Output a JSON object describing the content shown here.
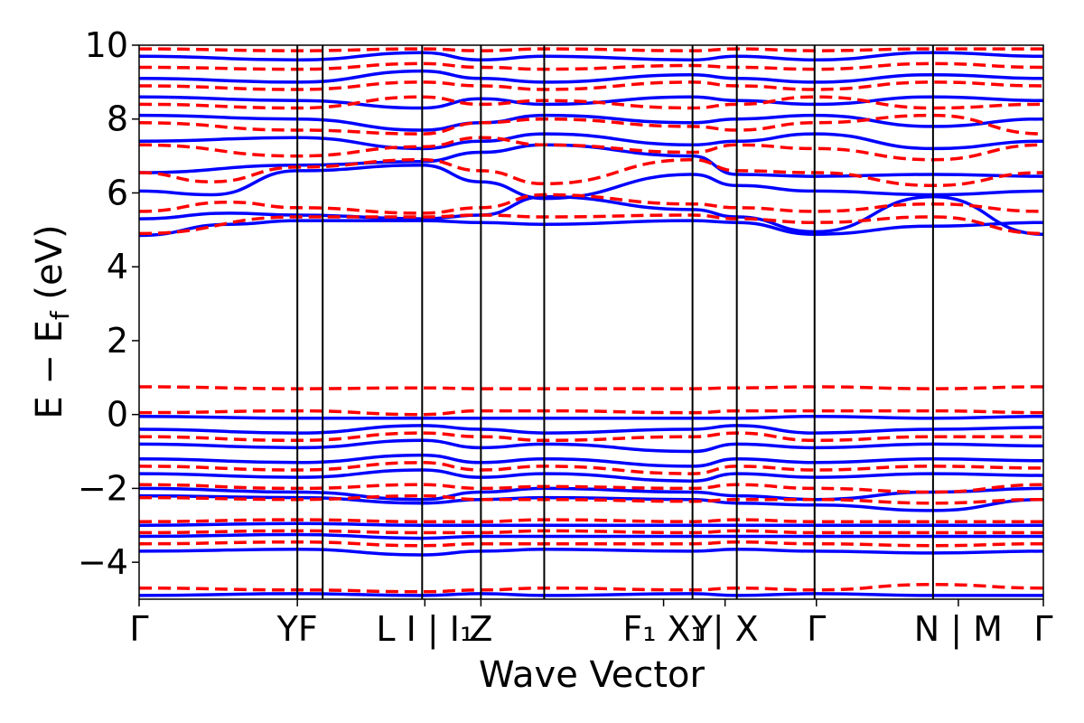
{
  "chart_data": {
    "type": "line",
    "title": "",
    "xlabel": "Wave Vector",
    "ylabel": "E − E",
    "ylabel_sub": "f",
    "ylabel_unit": " (eV)",
    "ylim": [
      -5,
      10
    ],
    "yticks": [
      -4,
      -2,
      0,
      2,
      4,
      6,
      8,
      10
    ],
    "ytick_labels": [
      "−4",
      "−2",
      "0",
      "2",
      "4",
      "6",
      "8",
      "10"
    ],
    "xlim": [
      0,
      1
    ],
    "kpoints": [
      {
        "x": 0.0,
        "label": "Γ"
      },
      {
        "x": 0.175,
        "label": "YF"
      },
      {
        "x": 0.316,
        "label": "L I | I₁"
      },
      {
        "x": 0.378,
        "label": "Z"
      },
      {
        "x": 0.58,
        "label": "F₁ X₁"
      },
      {
        "x": 0.648,
        "label": "Y| X"
      },
      {
        "x": 0.749,
        "label": "Γ"
      },
      {
        "x": 0.906,
        "label": "N | M"
      },
      {
        "x": 1.0,
        "label": "Γ"
      }
    ],
    "vlines_x": [
      0.175,
      0.203,
      0.313,
      0.378,
      0.448,
      0.612,
      0.661,
      0.747,
      0.878
    ],
    "grid": false,
    "legend": "none",
    "colors": {
      "spin_up": "#0000ff",
      "spin_down": "#ff0000"
    },
    "series": [
      {
        "style": "solid",
        "color": "#0000ff",
        "x": [
          0,
          0.1,
          0.175,
          0.313,
          0.378,
          0.448,
          0.612,
          0.661,
          0.747,
          0.878,
          1
        ],
        "y": [
          4.85,
          5.15,
          5.25,
          5.25,
          5.2,
          5.15,
          5.25,
          5.2,
          4.88,
          5.1,
          5.2
        ]
      },
      {
        "style": "solid",
        "color": "#0000ff",
        "x": [
          0,
          0.1,
          0.175,
          0.313,
          0.378,
          0.448,
          0.612,
          0.661,
          0.747,
          0.878,
          1
        ],
        "y": [
          5.3,
          5.45,
          5.4,
          5.3,
          5.4,
          5.9,
          5.55,
          5.35,
          4.95,
          5.9,
          4.88
        ]
      },
      {
        "style": "solid",
        "color": "#0000ff",
        "x": [
          0,
          0.08,
          0.175,
          0.313,
          0.378,
          0.448,
          0.612,
          0.661,
          0.747,
          0.878,
          1
        ],
        "y": [
          6.05,
          5.95,
          6.6,
          6.75,
          6.3,
          5.85,
          6.5,
          6.2,
          6.05,
          5.95,
          6.05
        ]
      },
      {
        "style": "solid",
        "color": "#0000ff",
        "x": [
          0,
          0.175,
          0.313,
          0.378,
          0.448,
          0.612,
          0.661,
          0.747,
          0.878,
          1
        ],
        "y": [
          6.55,
          6.75,
          6.85,
          7.1,
          7.3,
          7.0,
          6.5,
          6.45,
          6.5,
          6.45
        ]
      },
      {
        "style": "solid",
        "color": "#0000ff",
        "x": [
          0,
          0.175,
          0.313,
          0.378,
          0.448,
          0.612,
          0.661,
          0.747,
          0.878,
          1
        ],
        "y": [
          7.4,
          7.5,
          7.2,
          7.4,
          7.6,
          7.3,
          7.4,
          7.6,
          7.2,
          7.4
        ]
      },
      {
        "style": "solid",
        "color": "#0000ff",
        "x": [
          0,
          0.175,
          0.313,
          0.378,
          0.448,
          0.612,
          0.661,
          0.747,
          0.878,
          1
        ],
        "y": [
          8.1,
          8.0,
          7.7,
          7.9,
          8.1,
          7.9,
          8.0,
          8.1,
          7.8,
          8.0
        ]
      },
      {
        "style": "solid",
        "color": "#0000ff",
        "x": [
          0,
          0.175,
          0.313,
          0.378,
          0.448,
          0.612,
          0.661,
          0.747,
          0.878,
          1
        ],
        "y": [
          8.6,
          8.5,
          8.3,
          8.55,
          8.4,
          8.6,
          8.5,
          8.4,
          8.6,
          8.5
        ]
      },
      {
        "style": "solid",
        "color": "#0000ff",
        "x": [
          0,
          0.175,
          0.313,
          0.378,
          0.448,
          0.612,
          0.661,
          0.747,
          0.878,
          1
        ],
        "y": [
          9.1,
          9.0,
          9.3,
          9.1,
          9.0,
          9.2,
          9.1,
          9.0,
          9.2,
          9.1
        ]
      },
      {
        "style": "solid",
        "color": "#0000ff",
        "x": [
          0,
          0.175,
          0.313,
          0.378,
          0.448,
          0.612,
          0.661,
          0.747,
          0.878,
          1
        ],
        "y": [
          9.7,
          9.6,
          9.8,
          9.6,
          9.7,
          9.6,
          9.7,
          9.6,
          9.8,
          9.7
        ]
      },
      {
        "style": "solid",
        "color": "#0000ff",
        "x": [
          0,
          0.175,
          0.313,
          0.378,
          0.448,
          0.612,
          0.661,
          0.747,
          0.878,
          1
        ],
        "y": [
          -0.05,
          -0.1,
          -0.1,
          -0.1,
          -0.1,
          -0.1,
          -0.1,
          -0.05,
          -0.1,
          -0.05
        ]
      },
      {
        "style": "solid",
        "color": "#0000ff",
        "x": [
          0,
          0.175,
          0.313,
          0.378,
          0.448,
          0.612,
          0.661,
          0.747,
          0.878,
          1
        ],
        "y": [
          -0.4,
          -0.5,
          -0.3,
          -0.4,
          -0.5,
          -0.4,
          -0.3,
          -0.5,
          -0.4,
          -0.35
        ]
      },
      {
        "style": "solid",
        "color": "#0000ff",
        "x": [
          0,
          0.175,
          0.313,
          0.378,
          0.448,
          0.612,
          0.661,
          0.747,
          0.878,
          1
        ],
        "y": [
          -0.8,
          -0.9,
          -0.7,
          -0.9,
          -0.8,
          -1.0,
          -0.8,
          -0.9,
          -0.8,
          -0.85
        ]
      },
      {
        "style": "solid",
        "color": "#0000ff",
        "x": [
          0,
          0.175,
          0.313,
          0.378,
          0.448,
          0.612,
          0.661,
          0.747,
          0.878,
          1
        ],
        "y": [
          -1.2,
          -1.3,
          -1.1,
          -1.3,
          -1.2,
          -1.4,
          -1.2,
          -1.3,
          -1.2,
          -1.25
        ]
      },
      {
        "style": "solid",
        "color": "#0000ff",
        "x": [
          0,
          0.175,
          0.313,
          0.378,
          0.448,
          0.612,
          0.661,
          0.747,
          0.878,
          1
        ],
        "y": [
          -1.6,
          -1.7,
          -1.5,
          -1.7,
          -1.6,
          -1.8,
          -1.6,
          -1.7,
          -1.6,
          -1.65
        ]
      },
      {
        "style": "solid",
        "color": "#0000ff",
        "x": [
          0,
          0.175,
          0.313,
          0.378,
          0.448,
          0.612,
          0.661,
          0.747,
          0.878,
          1
        ],
        "y": [
          -2.0,
          -2.1,
          -2.3,
          -2.1,
          -2.0,
          -2.1,
          -2.2,
          -2.3,
          -2.1,
          -2.0
        ]
      },
      {
        "style": "solid",
        "color": "#0000ff",
        "x": [
          0,
          0.175,
          0.313,
          0.378,
          0.448,
          0.612,
          0.661,
          0.747,
          0.878,
          1
        ],
        "y": [
          -2.2,
          -2.25,
          -2.4,
          -2.3,
          -2.25,
          -2.3,
          -2.4,
          -2.45,
          -2.6,
          -2.3
        ]
      },
      {
        "style": "solid",
        "color": "#0000ff",
        "x": [
          0,
          0.175,
          0.313,
          0.378,
          0.448,
          0.612,
          0.661,
          0.747,
          0.878,
          1
        ],
        "y": [
          -3.0,
          -2.95,
          -3.0,
          -3.0,
          -3.0,
          -3.0,
          -3.0,
          -3.0,
          -3.0,
          -3.0
        ]
      },
      {
        "style": "solid",
        "color": "#0000ff",
        "x": [
          0,
          0.175,
          0.313,
          0.378,
          0.448,
          0.612,
          0.661,
          0.747,
          0.878,
          1
        ],
        "y": [
          -3.3,
          -3.25,
          -3.35,
          -3.3,
          -3.3,
          -3.3,
          -3.3,
          -3.3,
          -3.3,
          -3.3
        ]
      },
      {
        "style": "solid",
        "color": "#0000ff",
        "x": [
          0,
          0.175,
          0.313,
          0.378,
          0.448,
          0.612,
          0.661,
          0.747,
          0.878,
          1
        ],
        "y": [
          -3.7,
          -3.65,
          -3.8,
          -3.7,
          -3.65,
          -3.7,
          -3.65,
          -3.7,
          -3.75,
          -3.7
        ]
      },
      {
        "style": "solid",
        "color": "#0000ff",
        "x": [
          0,
          0.175,
          0.313,
          0.378,
          0.448,
          0.612,
          0.661,
          0.747,
          0.878,
          1
        ],
        "y": [
          -4.9,
          -4.85,
          -4.9,
          -4.85,
          -4.9,
          -4.85,
          -4.9,
          -4.85,
          -4.9,
          -4.9
        ]
      },
      {
        "style": "dashed",
        "color": "#ff0000",
        "x": [
          0,
          0.175,
          0.313,
          0.378,
          0.448,
          0.612,
          0.661,
          0.747,
          0.878,
          1
        ],
        "y": [
          4.9,
          5.35,
          5.35,
          5.4,
          5.35,
          5.4,
          5.3,
          5.2,
          5.35,
          4.9
        ]
      },
      {
        "style": "dashed",
        "color": "#ff0000",
        "x": [
          0,
          0.1,
          0.175,
          0.313,
          0.378,
          0.448,
          0.612,
          0.661,
          0.747,
          0.878,
          1
        ],
        "y": [
          5.5,
          5.75,
          5.6,
          5.45,
          5.6,
          5.95,
          5.7,
          5.6,
          5.5,
          5.7,
          5.5
        ]
      },
      {
        "style": "dashed",
        "color": "#ff0000",
        "x": [
          0,
          0.08,
          0.175,
          0.313,
          0.378,
          0.448,
          0.612,
          0.661,
          0.747,
          0.878,
          1
        ],
        "y": [
          6.55,
          6.3,
          6.7,
          6.9,
          6.6,
          6.25,
          6.9,
          6.6,
          6.55,
          6.2,
          6.55
        ]
      },
      {
        "style": "dashed",
        "color": "#ff0000",
        "x": [
          0,
          0.175,
          0.313,
          0.378,
          0.448,
          0.612,
          0.661,
          0.747,
          0.878,
          1
        ],
        "y": [
          7.3,
          7.0,
          7.25,
          7.5,
          7.3,
          7.1,
          7.3,
          7.2,
          6.9,
          7.3
        ]
      },
      {
        "style": "dashed",
        "color": "#ff0000",
        "x": [
          0,
          0.175,
          0.313,
          0.378,
          0.448,
          0.612,
          0.661,
          0.747,
          0.878,
          1
        ],
        "y": [
          7.9,
          7.7,
          7.6,
          7.9,
          8.0,
          7.8,
          7.7,
          7.9,
          8.1,
          7.6
        ]
      },
      {
        "style": "dashed",
        "color": "#ff0000",
        "x": [
          0,
          0.175,
          0.313,
          0.378,
          0.448,
          0.612,
          0.661,
          0.747,
          0.878,
          1
        ],
        "y": [
          8.4,
          8.3,
          8.6,
          8.4,
          8.5,
          8.3,
          8.4,
          8.6,
          8.3,
          8.4
        ]
      },
      {
        "style": "dashed",
        "color": "#ff0000",
        "x": [
          0,
          0.175,
          0.313,
          0.378,
          0.448,
          0.612,
          0.661,
          0.747,
          0.878,
          1
        ],
        "y": [
          8.9,
          8.8,
          9.0,
          8.9,
          8.8,
          9.0,
          8.9,
          8.8,
          9.0,
          8.9
        ]
      },
      {
        "style": "dashed",
        "color": "#ff0000",
        "x": [
          0,
          0.175,
          0.313,
          0.378,
          0.448,
          0.612,
          0.661,
          0.747,
          0.878,
          1
        ],
        "y": [
          9.4,
          9.35,
          9.5,
          9.4,
          9.35,
          9.45,
          9.4,
          9.35,
          9.5,
          9.4
        ]
      },
      {
        "style": "dashed",
        "color": "#ff0000",
        "x": [
          0,
          0.175,
          0.313,
          0.378,
          0.448,
          0.612,
          0.661,
          0.747,
          0.878,
          1
        ],
        "y": [
          9.9,
          9.85,
          9.9,
          9.85,
          9.9,
          9.85,
          9.9,
          9.85,
          9.9,
          9.9
        ]
      },
      {
        "style": "dashed",
        "color": "#ff0000",
        "x": [
          0,
          0.175,
          0.313,
          0.378,
          0.448,
          0.612,
          0.661,
          0.747,
          0.878,
          1
        ],
        "y": [
          0.75,
          0.7,
          0.72,
          0.7,
          0.7,
          0.7,
          0.72,
          0.75,
          0.7,
          0.75
        ]
      },
      {
        "style": "dashed",
        "color": "#ff0000",
        "x": [
          0,
          0.175,
          0.313,
          0.378,
          0.448,
          0.612,
          0.661,
          0.747,
          0.878,
          1
        ],
        "y": [
          0.05,
          0.1,
          0.0,
          0.1,
          0.1,
          0.05,
          0.1,
          0.1,
          0.1,
          0.05
        ]
      },
      {
        "style": "dashed",
        "color": "#ff0000",
        "x": [
          0,
          0.175,
          0.313,
          0.378,
          0.448,
          0.612,
          0.661,
          0.747,
          0.878,
          1
        ],
        "y": [
          -0.6,
          -0.7,
          -0.5,
          -0.6,
          -0.7,
          -0.6,
          -0.5,
          -0.7,
          -0.6,
          -0.6
        ]
      },
      {
        "style": "dashed",
        "color": "#ff0000",
        "x": [
          0,
          0.175,
          0.313,
          0.378,
          0.448,
          0.612,
          0.661,
          0.747,
          0.878,
          1
        ],
        "y": [
          -1.4,
          -1.5,
          -1.3,
          -1.5,
          -1.4,
          -1.6,
          -1.4,
          -1.5,
          -1.4,
          -1.45
        ]
      },
      {
        "style": "dashed",
        "color": "#ff0000",
        "x": [
          0,
          0.175,
          0.313,
          0.378,
          0.448,
          0.612,
          0.661,
          0.747,
          0.878,
          1
        ],
        "y": [
          -1.9,
          -2.0,
          -1.9,
          -2.0,
          -1.95,
          -2.0,
          -1.9,
          -2.0,
          -2.1,
          -1.9
        ]
      },
      {
        "style": "dashed",
        "color": "#ff0000",
        "x": [
          0,
          0.175,
          0.313,
          0.378,
          0.448,
          0.612,
          0.661,
          0.747,
          0.878,
          1
        ],
        "y": [
          -2.25,
          -2.3,
          -2.2,
          -2.3,
          -2.3,
          -2.35,
          -2.3,
          -2.3,
          -2.4,
          -2.3
        ]
      },
      {
        "style": "dashed",
        "color": "#ff0000",
        "x": [
          0,
          0.175,
          0.313,
          0.378,
          0.448,
          0.612,
          0.661,
          0.747,
          0.878,
          1
        ],
        "y": [
          -2.9,
          -2.85,
          -2.9,
          -2.9,
          -2.85,
          -2.9,
          -2.85,
          -2.9,
          -2.9,
          -2.9
        ]
      },
      {
        "style": "dashed",
        "color": "#ff0000",
        "x": [
          0,
          0.175,
          0.313,
          0.378,
          0.448,
          0.612,
          0.661,
          0.747,
          0.878,
          1
        ],
        "y": [
          -3.2,
          -3.15,
          -3.2,
          -3.2,
          -3.15,
          -3.2,
          -3.15,
          -3.2,
          -3.2,
          -3.2
        ]
      },
      {
        "style": "dashed",
        "color": "#ff0000",
        "x": [
          0,
          0.175,
          0.313,
          0.378,
          0.448,
          0.612,
          0.661,
          0.747,
          0.878,
          1
        ],
        "y": [
          -3.5,
          -3.45,
          -3.55,
          -3.5,
          -3.5,
          -3.5,
          -3.45,
          -3.5,
          -3.55,
          -3.5
        ]
      },
      {
        "style": "dashed",
        "color": "#ff0000",
        "x": [
          0,
          0.175,
          0.313,
          0.378,
          0.448,
          0.612,
          0.661,
          0.747,
          0.878,
          1
        ],
        "y": [
          -4.7,
          -4.75,
          -4.8,
          -4.75,
          -4.7,
          -4.75,
          -4.7,
          -4.75,
          -4.6,
          -4.7
        ]
      }
    ]
  }
}
